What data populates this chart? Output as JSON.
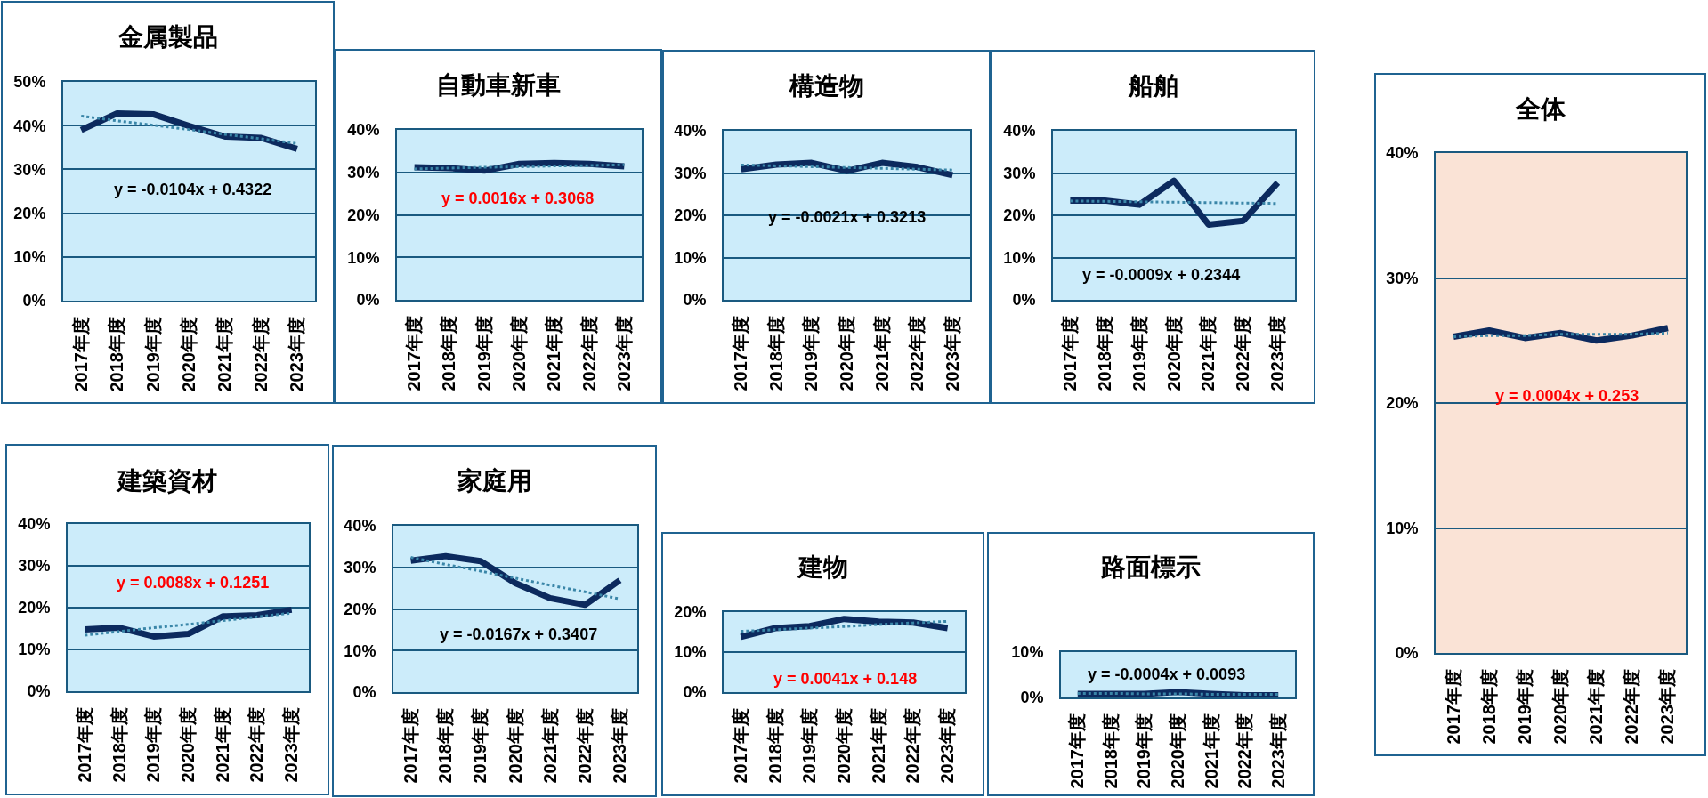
{
  "chart_data": [
    {
      "type": "line",
      "title": "金属製品",
      "categories": [
        "2017年度",
        "2018年度",
        "2019年度",
        "2020年度",
        "2021年度",
        "2022年度",
        "2023年度"
      ],
      "series": [
        {
          "color": "#0c2a5e",
          "values": [
            39.0,
            42.8,
            42.6,
            39.9,
            37.5,
            37.2,
            34.7
          ]
        },
        {
          "type": "line",
          "line_style": "dotted",
          "color": "#3a86a8",
          "values": [
            42.2,
            41.1,
            40.1,
            39.1,
            38.0,
            37.0,
            35.9
          ]
        }
      ],
      "ylim": [
        0,
        50
      ],
      "yticks": [
        {
          "value": 0,
          "label": "0%"
        },
        {
          "value": 10,
          "label": "10%"
        },
        {
          "value": 20,
          "label": "20%"
        },
        {
          "value": 30,
          "label": "30%"
        },
        {
          "value": 40,
          "label": "40%"
        },
        {
          "value": 50,
          "label": "50%"
        }
      ],
      "grid": "y",
      "annotations": [
        "y = -0.0104x + 0.4322"
      ]
    },
    {
      "type": "line",
      "title": "自動車新車",
      "categories": [
        "2017年度",
        "2018年度",
        "2019年度",
        "2020年度",
        "2021年度",
        "2022年度",
        "2023年度"
      ],
      "series": [
        {
          "color": "#0c2a5e",
          "values": [
            31.2,
            31.0,
            30.4,
            32.0,
            32.2,
            32.0,
            31.4
          ]
        },
        {
          "type": "line",
          "line_style": "dotted",
          "color": "#3a86a8",
          "values": [
            30.8,
            31.0,
            31.2,
            31.3,
            31.5,
            31.6,
            31.8
          ]
        }
      ],
      "ylim": [
        0,
        40
      ],
      "yticks": [
        {
          "value": 0,
          "label": "0%"
        },
        {
          "value": 10,
          "label": "10%"
        },
        {
          "value": 20,
          "label": "20%"
        },
        {
          "value": 30,
          "label": "30%"
        },
        {
          "value": 40,
          "label": "40%"
        }
      ],
      "grid": "y",
      "annotations": [
        "y = 0.0016x + 0.3068"
      ]
    },
    {
      "type": "line",
      "title": "構造物",
      "categories": [
        "2017年度",
        "2018年度",
        "2019年度",
        "2020年度",
        "2021年度",
        "2022年度",
        "2023年度"
      ],
      "series": [
        {
          "color": "#0c2a5e",
          "values": [
            30.9,
            32.0,
            32.4,
            30.5,
            32.4,
            31.4,
            29.5
          ]
        },
        {
          "type": "line",
          "line_style": "dotted",
          "color": "#3a86a8",
          "values": [
            31.9,
            31.7,
            31.5,
            31.3,
            31.1,
            30.9,
            30.7
          ]
        }
      ],
      "ylim": [
        0,
        40
      ],
      "yticks": [
        {
          "value": 0,
          "label": "0%"
        },
        {
          "value": 10,
          "label": "10%"
        },
        {
          "value": 20,
          "label": "20%"
        },
        {
          "value": 30,
          "label": "30%"
        },
        {
          "value": 40,
          "label": "40%"
        }
      ],
      "grid": "y",
      "annotations": [
        "y = -0.0021x + 0.3213"
      ]
    },
    {
      "type": "line",
      "title": "船舶",
      "categories": [
        "2017年度",
        "2018年度",
        "2019年度",
        "2020年度",
        "2021年度",
        "2022年度",
        "2023年度"
      ],
      "series": [
        {
          "color": "#0c2a5e",
          "values": [
            23.5,
            23.5,
            22.5,
            28.2,
            17.8,
            18.7,
            27.7
          ]
        },
        {
          "type": "line",
          "line_style": "dotted",
          "color": "#3a86a8",
          "values": [
            23.4,
            23.3,
            23.2,
            23.1,
            23.0,
            22.9,
            22.8
          ]
        }
      ],
      "ylim": [
        0,
        40
      ],
      "yticks": [
        {
          "value": 0,
          "label": "0%"
        },
        {
          "value": 10,
          "label": "10%"
        },
        {
          "value": 20,
          "label": "20%"
        },
        {
          "value": 30,
          "label": "30%"
        },
        {
          "value": 40,
          "label": "40%"
        }
      ],
      "grid": "y",
      "annotations": [
        "y = -0.0009x + 0.2344"
      ]
    },
    {
      "type": "line",
      "title": "全体",
      "categories": [
        "2017年度",
        "2018年度",
        "2019年度",
        "2020年度",
        "2021年度",
        "2022年度",
        "2023年度"
      ],
      "series": [
        {
          "color": "#0c2a5e",
          "values": [
            25.3,
            25.8,
            25.2,
            25.6,
            25.0,
            25.4,
            26.0
          ]
        },
        {
          "type": "line",
          "line_style": "dotted",
          "color": "#3a86a8",
          "values": [
            25.3,
            25.4,
            25.4,
            25.5,
            25.5,
            25.5,
            25.6
          ]
        }
      ],
      "ylim": [
        0,
        40
      ],
      "yticks": [
        {
          "value": 0,
          "label": "0%"
        },
        {
          "value": 10,
          "label": "10%"
        },
        {
          "value": 20,
          "label": "20%"
        },
        {
          "value": 30,
          "label": "30%"
        },
        {
          "value": 40,
          "label": "40%"
        }
      ],
      "grid": "y",
      "annotations": [
        "y = 0.0004x + 0.253"
      ]
    },
    {
      "type": "line",
      "title": "建築資材",
      "categories": [
        "2017年度",
        "2018年度",
        "2019年度",
        "2020年度",
        "2021年度",
        "2022年度",
        "2023年度"
      ],
      "series": [
        {
          "color": "#0c2a5e",
          "values": [
            14.8,
            15.2,
            13.1,
            13.7,
            17.9,
            18.2,
            19.5
          ]
        },
        {
          "type": "line",
          "line_style": "dotted",
          "color": "#3a86a8",
          "values": [
            13.4,
            14.3,
            15.2,
            16.0,
            16.9,
            17.8,
            18.7
          ]
        }
      ],
      "ylim": [
        0,
        40
      ],
      "yticks": [
        {
          "value": 0,
          "label": "0%"
        },
        {
          "value": 10,
          "label": "10%"
        },
        {
          "value": 20,
          "label": "20%"
        },
        {
          "value": 30,
          "label": "30%"
        },
        {
          "value": 40,
          "label": "40%"
        }
      ],
      "grid": "y",
      "annotations": [
        "y = 0.0088x + 0.1251"
      ]
    },
    {
      "type": "line",
      "title": "家庭用",
      "categories": [
        "2017年度",
        "2018年度",
        "2019年度",
        "2020年度",
        "2021年度",
        "2022年度",
        "2023年度"
      ],
      "series": [
        {
          "color": "#0c2a5e",
          "values": [
            31.6,
            32.7,
            31.5,
            26.2,
            22.6,
            21.0,
            26.9
          ]
        },
        {
          "type": "line",
          "line_style": "dotted",
          "color": "#3a86a8",
          "values": [
            32.4,
            30.7,
            29.1,
            27.4,
            25.7,
            24.1,
            22.4
          ]
        }
      ],
      "ylim": [
        0,
        40
      ],
      "yticks": [
        {
          "value": 0,
          "label": "0%"
        },
        {
          "value": 10,
          "label": "10%"
        },
        {
          "value": 20,
          "label": "20%"
        },
        {
          "value": 30,
          "label": "30%"
        },
        {
          "value": 40,
          "label": "40%"
        }
      ],
      "grid": "y",
      "annotations": [
        "y = -0.0167x + 0.3407"
      ]
    },
    {
      "type": "line",
      "title": "建物",
      "categories": [
        "2017年度",
        "2018年度",
        "2019年度",
        "2020年度",
        "2021年度",
        "2022年度",
        "2023年度"
      ],
      "series": [
        {
          "color": "#0c2a5e",
          "values": [
            13.8,
            16.0,
            16.5,
            18.3,
            17.6,
            17.4,
            16.0
          ]
        },
        {
          "type": "line",
          "line_style": "dotted",
          "color": "#3a86a8",
          "values": [
            15.2,
            15.6,
            16.0,
            16.4,
            16.9,
            17.3,
            17.7
          ]
        }
      ],
      "ylim": [
        0,
        20
      ],
      "yticks": [
        {
          "value": 0,
          "label": "0%"
        },
        {
          "value": 10,
          "label": "10%"
        },
        {
          "value": 20,
          "label": "20%"
        }
      ],
      "ref_lines": [
        {
          "axis": "y",
          "value": 10,
          "color": "#1a5a80"
        }
      ],
      "annotations": [
        "y = 0.0041x + 0.148"
      ]
    },
    {
      "type": "line",
      "title": "路面標示",
      "categories": [
        "2017年度",
        "2018年度",
        "2019年度",
        "2020年度",
        "2021年度",
        "2022年度",
        "2023年度"
      ],
      "series": [
        {
          "color": "#0c2a5e",
          "values": [
            0.8,
            0.8,
            0.8,
            1.2,
            0.8,
            0.5,
            0.5
          ]
        },
        {
          "type": "line",
          "line_style": "dotted",
          "color": "#3a86a8",
          "values": [
            0.9,
            0.9,
            0.8,
            0.8,
            0.7,
            0.7,
            0.7
          ]
        }
      ],
      "ylim": [
        0,
        10
      ],
      "yticks": [
        {
          "value": 0,
          "label": "0%"
        },
        {
          "value": 10,
          "label": "10%"
        }
      ],
      "annotations": [
        "y = -0.0004x + 0.0093"
      ]
    }
  ]
}
